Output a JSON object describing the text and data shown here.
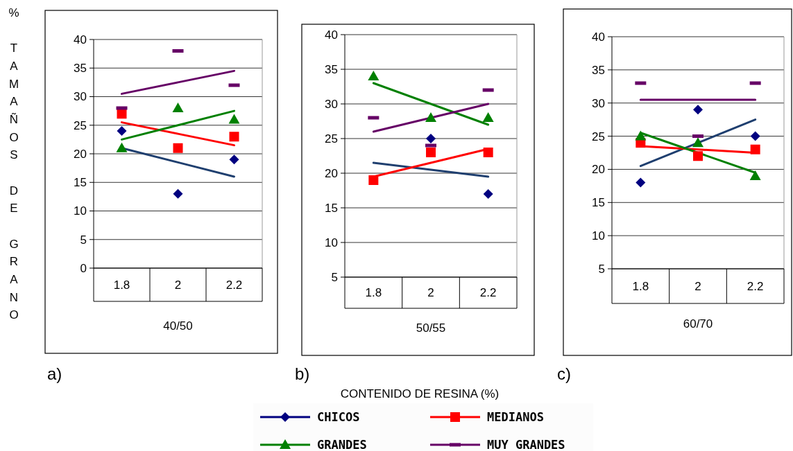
{
  "chart_data": [
    {
      "type": "scatter",
      "categories": [
        "1.8",
        "2",
        "2.2"
      ],
      "xlabel": "40/50",
      "ylabel": "% TAMAÑOS DE GRANO",
      "ylim": [
        0,
        40
      ],
      "yticks": [
        0,
        5,
        10,
        15,
        20,
        25,
        30,
        35,
        40
      ],
      "grid": "y",
      "legend": "bottom",
      "annotations": [
        "a)",
        "CONTENIDO DE RESINA (%)"
      ],
      "series": [
        {
          "name": "CHICOS",
          "color": "#000080",
          "marker": "diamond",
          "values": [
            24,
            13,
            19
          ]
        },
        {
          "name": "MEDIANOS",
          "color": "#ff0000",
          "marker": "square",
          "values": [
            27,
            21,
            23
          ]
        },
        {
          "name": "GRANDES",
          "color": "#008000",
          "marker": "triangle",
          "values": [
            21,
            28,
            26
          ]
        },
        {
          "name": "MUY GRANDES",
          "color": "#660066",
          "values": [
            28,
            38,
            32
          ]
        },
        {
          "type": "line",
          "color": "#1f3f6f",
          "x": [
            "1.8",
            "2",
            "2.2"
          ],
          "values": [
            21,
            18.5,
            16
          ]
        },
        {
          "type": "line",
          "color": "#ff0000",
          "x": [
            "1.8",
            "2",
            "2.2"
          ],
          "values": [
            25.5,
            23.5,
            21.5
          ]
        },
        {
          "type": "line",
          "color": "#008000",
          "x": [
            "1.8",
            "2",
            "2.2"
          ],
          "values": [
            22.5,
            25,
            27.5
          ]
        },
        {
          "type": "line",
          "color": "#660066",
          "x": [
            "1.8",
            "2",
            "2.2"
          ],
          "values": [
            30.5,
            32.5,
            34.5
          ]
        }
      ]
    },
    {
      "type": "scatter",
      "categories": [
        "1.8",
        "2",
        "2.2"
      ],
      "xlabel": "50/55",
      "ylim": [
        5,
        40
      ],
      "yticks": [
        5,
        10,
        15,
        20,
        25,
        30,
        35,
        40
      ],
      "grid": "y",
      "annotations": [
        "b)"
      ],
      "series": [
        {
          "color": "#000080",
          "marker": "diamond",
          "values": [
            null,
            25,
            17
          ]
        },
        {
          "color": "#ff0000",
          "marker": "square",
          "values": [
            19,
            23,
            23
          ]
        },
        {
          "color": "#008000",
          "marker": "triangle",
          "values": [
            34,
            28,
            28
          ]
        },
        {
          "color": "#660066",
          "values": [
            28,
            24,
            32
          ]
        },
        {
          "type": "line",
          "color": "#1f3f6f",
          "x": [
            "1.8",
            "2",
            "2.2"
          ],
          "values": [
            21.5,
            20.5,
            19.5
          ]
        },
        {
          "type": "line",
          "color": "#ff0000",
          "x": [
            "1.8",
            "2",
            "2.2"
          ],
          "values": [
            19.5,
            21.5,
            23.5
          ]
        },
        {
          "type": "line",
          "color": "#008000",
          "x": [
            "1.8",
            "2",
            "2.2"
          ],
          "values": [
            33,
            30,
            27
          ]
        },
        {
          "type": "line",
          "color": "#660066",
          "x": [
            "1.8",
            "2",
            "2.2"
          ],
          "values": [
            26,
            28,
            30
          ]
        }
      ]
    },
    {
      "type": "scatter",
      "categories": [
        "1.8",
        "2",
        "2.2"
      ],
      "xlabel": "60/70",
      "ylim": [
        5,
        40
      ],
      "yticks": [
        5,
        10,
        15,
        20,
        25,
        30,
        35,
        40
      ],
      "grid": "y",
      "annotations": [
        "c)"
      ],
      "series": [
        {
          "color": "#000080",
          "marker": "diamond",
          "values": [
            18,
            29,
            25
          ]
        },
        {
          "color": "#ff0000",
          "marker": "square",
          "values": [
            24,
            22,
            23
          ]
        },
        {
          "color": "#008000",
          "marker": "triangle",
          "values": [
            25,
            24,
            19
          ]
        },
        {
          "color": "#660066",
          "values": [
            33,
            25,
            33
          ]
        },
        {
          "type": "line",
          "color": "#1f3f6f",
          "x": [
            "1.8",
            "2",
            "2.2"
          ],
          "values": [
            20.5,
            24,
            27.5
          ]
        },
        {
          "type": "line",
          "color": "#ff0000",
          "x": [
            "1.8",
            "2",
            "2.2"
          ],
          "values": [
            23.5,
            23,
            22.5
          ]
        },
        {
          "type": "line",
          "color": "#008000",
          "x": [
            "1.8",
            "2",
            "2.2"
          ],
          "values": [
            25.5,
            22.5,
            19.5
          ]
        },
        {
          "type": "line",
          "color": "#660066",
          "x": [
            "1.8",
            "2",
            "2.2"
          ],
          "values": [
            30.5,
            30.5,
            30.5
          ]
        }
      ]
    }
  ]
}
